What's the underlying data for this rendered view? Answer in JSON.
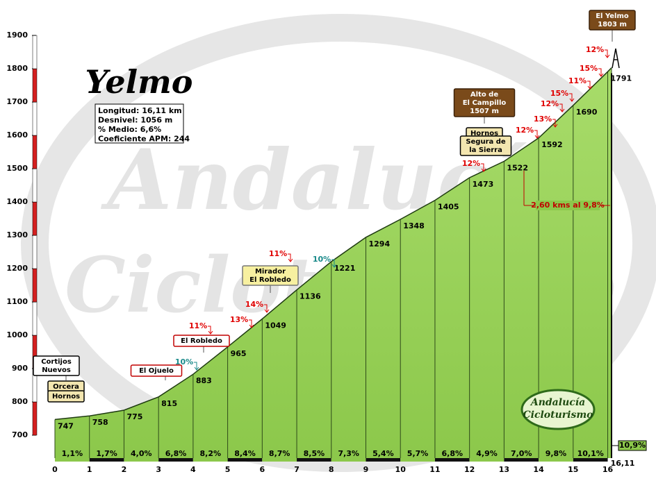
{
  "chart_data": {
    "type": "area",
    "title": "Yelmo",
    "info": [
      "Longitud: 16,11 km",
      "Desnivel: 1056 m",
      "% Medio: 6,6%",
      "Coeficiente APM: 244"
    ],
    "x": [
      0,
      1,
      2,
      3,
      4,
      5,
      6,
      7,
      8,
      9,
      10,
      11,
      12,
      13,
      14,
      15,
      16,
      16.11
    ],
    "values": [
      747,
      758,
      775,
      815,
      883,
      965,
      1049,
      1136,
      1221,
      1294,
      1348,
      1405,
      1473,
      1522,
      1592,
      1690,
      1791,
      1803
    ],
    "grades": [
      "1,1%",
      "1,7%",
      "4,0%",
      "6,8%",
      "8,2%",
      "8,4%",
      "8,7%",
      "8,5%",
      "7,3%",
      "5,4%",
      "5,7%",
      "6,8%",
      "4,9%",
      "7,0%",
      "9,8%",
      "10,1%",
      "10,9%"
    ],
    "color": "#8cc84b",
    "xlim": [
      0,
      16.11
    ],
    "ylim": [
      700,
      1900
    ],
    "xticks": [
      0,
      1,
      2,
      3,
      4,
      5,
      6,
      7,
      8,
      9,
      10,
      11,
      12,
      13,
      14,
      15,
      16,
      {
        "value": 16.11,
        "label": "16,11"
      }
    ],
    "yticks": [
      700,
      800,
      900,
      1000,
      1100,
      1200,
      1300,
      1400,
      1500,
      1600,
      1700,
      1800,
      1900
    ],
    "annotations": [
      {
        "lines": [
          "Cortijos",
          "Nuevos"
        ],
        "style": "white"
      },
      {
        "lines": [
          "Orcera"
        ],
        "style": "tan"
      },
      {
        "lines": [
          "Hornos"
        ],
        "style": "tan"
      },
      {
        "lines": [
          "El Ojuelo"
        ],
        "style": "red"
      },
      {
        "lines": [
          "El Robledo"
        ],
        "style": "red"
      },
      {
        "lines": [
          "Mirador",
          "El Robledo"
        ],
        "style": "yellow"
      },
      {
        "lines": [
          "Alto de",
          "El Campillo",
          "1507 m"
        ],
        "style": "brown"
      },
      {
        "lines": [
          "Hornos"
        ],
        "style": "tan"
      },
      {
        "lines": [
          "Segura de",
          "la Sierra"
        ],
        "style": "tan"
      },
      {
        "lines": [
          "El Yelmo",
          "1803 m"
        ],
        "style": "brown"
      },
      {
        "lines": [
          "2,60 kms al 9,8%"
        ],
        "style": "text"
      }
    ],
    "steep_labels": [
      {
        "text": "10%",
        "color": "#1a8a8a"
      },
      {
        "text": "11%",
        "color": "#e00000"
      },
      {
        "text": "13%",
        "color": "#e00000"
      },
      {
        "text": "14%",
        "color": "#e00000"
      },
      {
        "text": "11%",
        "color": "#e00000"
      },
      {
        "text": "10%",
        "color": "#1a8a8a"
      },
      {
        "text": "12%",
        "color": "#e00000"
      },
      {
        "text": "12%",
        "color": "#e00000"
      },
      {
        "text": "13%",
        "color": "#e00000"
      },
      {
        "text": "12%",
        "color": "#e00000"
      },
      {
        "text": "15%",
        "color": "#e00000"
      },
      {
        "text": "11%",
        "color": "#e00000"
      },
      {
        "text": "15%",
        "color": "#e00000"
      },
      {
        "text": "12%",
        "color": "#e00000"
      }
    ],
    "logo": [
      "Andalucía",
      "Cicloturismo"
    ]
  }
}
